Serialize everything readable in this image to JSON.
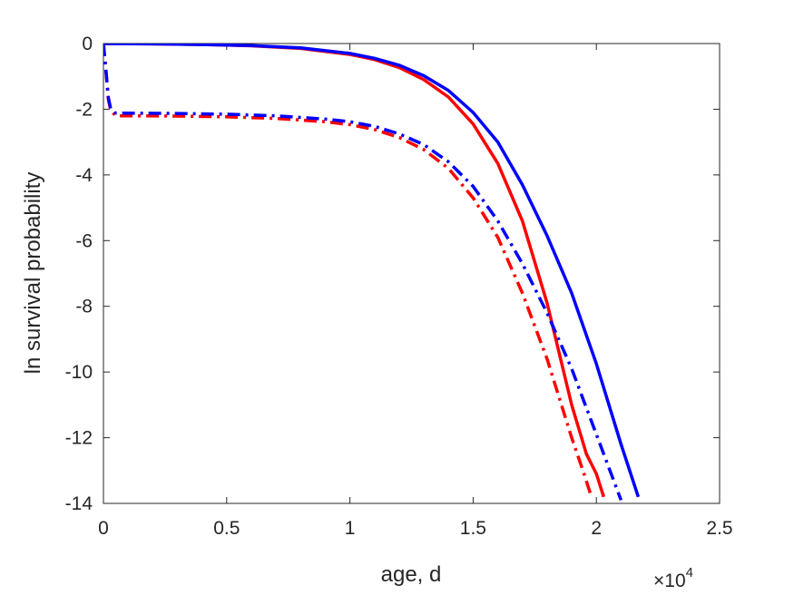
{
  "chart_data": {
    "type": "line",
    "xlabel": "age, d",
    "ylabel": "ln survival probability",
    "x_exponent_label": {
      "base": "×10",
      "power": "4"
    },
    "xlim": [
      0,
      25000
    ],
    "ylim": [
      -14,
      0
    ],
    "xticks": [
      0,
      5000,
      10000,
      15000,
      20000,
      25000
    ],
    "xtick_labels": [
      "0",
      "0.5",
      "1",
      "1.5",
      "2",
      "2.5"
    ],
    "yticks": [
      0,
      -2,
      -4,
      -6,
      -8,
      -10,
      -12,
      -14
    ],
    "ytick_labels": [
      "0",
      "-2",
      "-4",
      "-6",
      "-8",
      "-10",
      "-12",
      "-14"
    ],
    "grid": false,
    "series": [
      {
        "color": "#ff0000",
        "style": "solid",
        "x": [
          0,
          2000,
          4000,
          6000,
          8000,
          10000,
          11000,
          12000,
          13000,
          14000,
          15000,
          16000,
          17000,
          18000,
          19000,
          19600,
          20000,
          20300
        ],
        "y": [
          0,
          -0.01,
          -0.03,
          -0.07,
          -0.15,
          -0.33,
          -0.49,
          -0.73,
          -1.1,
          -1.63,
          -2.45,
          -3.65,
          -5.4,
          -7.9,
          -11.0,
          -12.5,
          -13.1,
          -13.8
        ]
      },
      {
        "color": "#0000ff",
        "style": "solid",
        "x": [
          0,
          2000,
          4000,
          6000,
          8000,
          10000,
          11000,
          12000,
          13000,
          14000,
          15000,
          16000,
          17000,
          18000,
          19000,
          20000,
          21000,
          21700
        ],
        "y": [
          0,
          -0.01,
          -0.03,
          -0.06,
          -0.13,
          -0.3,
          -0.45,
          -0.66,
          -0.98,
          -1.43,
          -2.1,
          -3.0,
          -4.3,
          -5.85,
          -7.6,
          -9.75,
          -12.2,
          -13.8
        ]
      },
      {
        "color": "#ff0000",
        "style": "dashdot",
        "x": [
          0,
          100,
          200,
          300,
          500,
          1000,
          3000,
          5000,
          7000,
          9000,
          10000,
          11000,
          12000,
          13000,
          14000,
          15000,
          16000,
          17000,
          18000,
          19000,
          19500,
          19800
        ],
        "y": [
          0,
          -0.8,
          -1.7,
          -2.05,
          -2.2,
          -2.2,
          -2.21,
          -2.23,
          -2.28,
          -2.38,
          -2.47,
          -2.62,
          -2.86,
          -3.23,
          -3.8,
          -4.7,
          -5.9,
          -7.6,
          -9.6,
          -12.0,
          -13.1,
          -13.8
        ]
      },
      {
        "color": "#0000ff",
        "style": "dashdot",
        "x": [
          0,
          100,
          200,
          300,
          500,
          1000,
          3000,
          5000,
          7000,
          9000,
          10000,
          11000,
          12000,
          13000,
          14000,
          15000,
          16000,
          17000,
          18000,
          19000,
          20000,
          20500,
          21000
        ],
        "y": [
          0,
          -0.8,
          -1.65,
          -2.0,
          -2.12,
          -2.12,
          -2.13,
          -2.15,
          -2.2,
          -2.3,
          -2.38,
          -2.52,
          -2.75,
          -3.08,
          -3.6,
          -4.35,
          -5.4,
          -6.7,
          -8.2,
          -9.9,
          -11.9,
          -12.9,
          -13.9
        ]
      }
    ]
  }
}
